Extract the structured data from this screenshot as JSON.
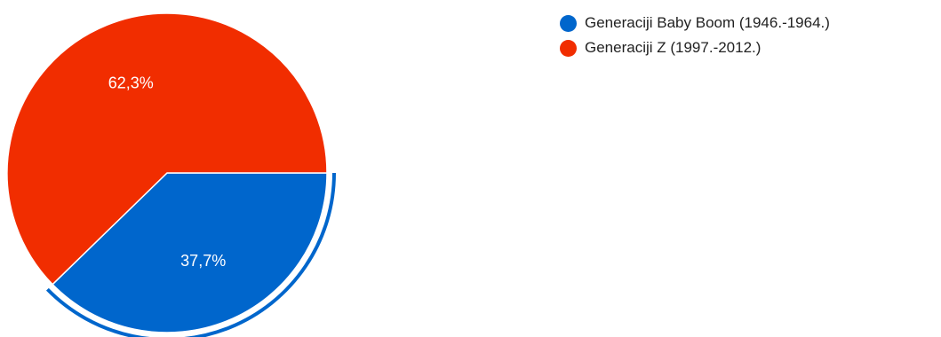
{
  "chart_data": {
    "type": "pie",
    "series": [
      {
        "name": "Generaciji Baby Boom (1946.-1964.)",
        "value": 37.7,
        "label": "37,7%",
        "color": "#0066cc",
        "highlighted": true
      },
      {
        "name": "Generaciji Z (1997.-2012.)",
        "value": 62.3,
        "label": "62,3%",
        "color": "#f12d00",
        "highlighted": false
      }
    ],
    "legend_position": "top-right"
  }
}
